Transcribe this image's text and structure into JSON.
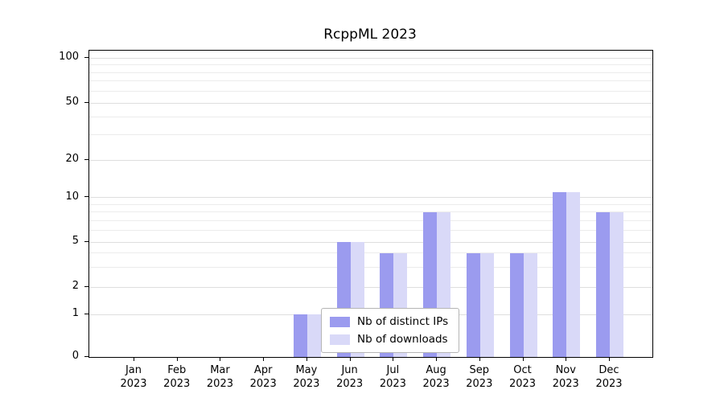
{
  "chart_data": {
    "type": "bar",
    "title": "RcppML 2023",
    "year": "2023",
    "categories": [
      "Jan",
      "Feb",
      "Mar",
      "Apr",
      "May",
      "Jun",
      "Jul",
      "Aug",
      "Sep",
      "Oct",
      "Nov",
      "Dec"
    ],
    "series": [
      {
        "name": "Nb of distinct IPs",
        "color": "#9b9bef",
        "values": [
          0,
          0,
          0,
          0,
          1,
          5,
          4,
          8,
          4,
          4,
          11,
          8
        ]
      },
      {
        "name": "Nb of downloads",
        "color": "#d9d9f8",
        "values": [
          0,
          0,
          0,
          0,
          1,
          5,
          4,
          8,
          4,
          4,
          11,
          8
        ]
      }
    ],
    "yticks": [
      0,
      1,
      2,
      5,
      10,
      20,
      50,
      100
    ],
    "minor_gridlines": [
      3,
      4,
      6,
      7,
      8,
      9,
      30,
      40,
      60,
      70,
      80,
      90
    ],
    "ylim": [
      0,
      100
    ],
    "yscale": "log-like",
    "grid": true,
    "legend_position": "lower center inside plot"
  }
}
